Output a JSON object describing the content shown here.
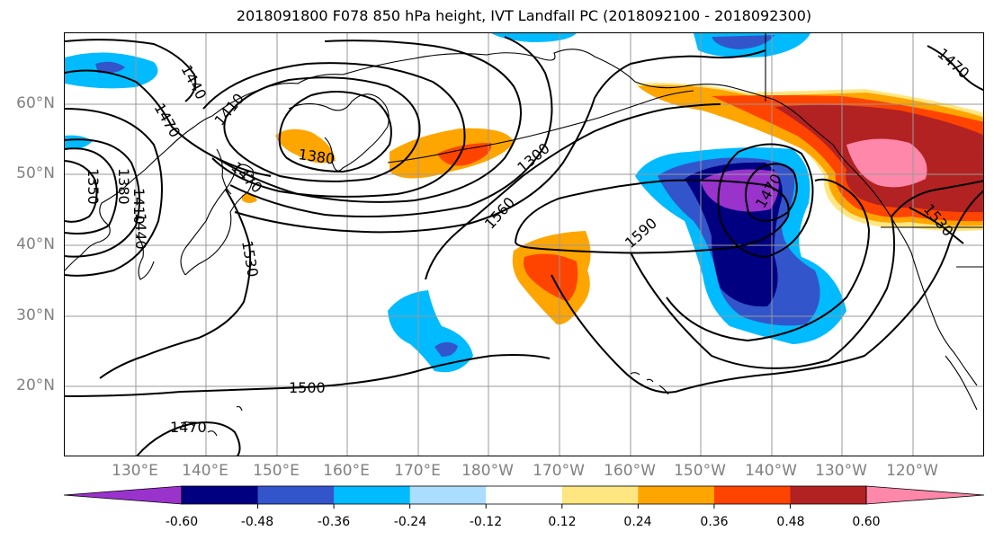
{
  "title": "2018091800 F078 850 hPa height, IVT Landfall PC (2018092100 - 2018092300)",
  "lat_labels": [
    "60°N",
    "50°N",
    "40°N",
    "30°N",
    "20°N"
  ],
  "lon_labels": [
    "130°E",
    "140°E",
    "150°E",
    "160°E",
    "170°E",
    "180°W",
    "170°W",
    "160°W",
    "150°W",
    "140°W",
    "130°W",
    "120°W"
  ],
  "contour_labels": [
    "1440",
    "1470",
    "1410",
    "1380",
    "1300",
    "1560",
    "1590",
    "1470",
    "1530",
    "1350",
    "1380",
    "1410",
    "1440",
    "1470",
    "1530",
    "1500",
    "1470"
  ],
  "colorbar": {
    "colors": [
      "#9933cc",
      "#000080",
      "#3355cc",
      "#00bbff",
      "#aaddff",
      "#ffffff",
      "#ffe680",
      "#ffa500",
      "#ff4400",
      "#b22222",
      "#ff88aa"
    ],
    "ticks": [
      "-0.60",
      "-0.48",
      "-0.36",
      "-0.24",
      "-0.12",
      "0.12",
      "0.24",
      "0.36",
      "0.48",
      "0.60"
    ]
  },
  "map_colors": {
    "contour": "#000000",
    "coast": "#000000",
    "grid": "#999999",
    "label": "#808080"
  }
}
